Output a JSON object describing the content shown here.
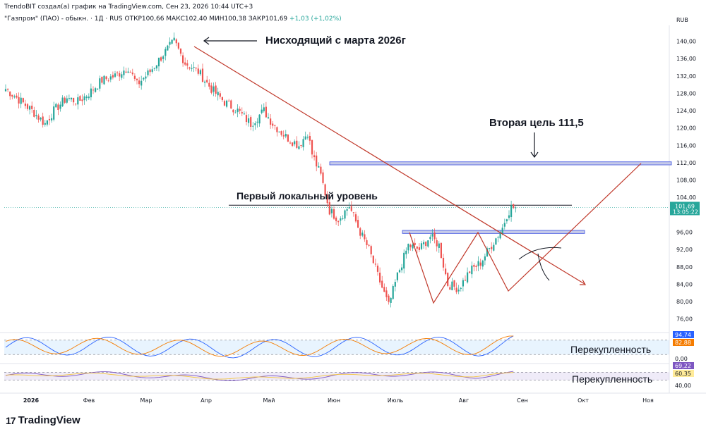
{
  "header": {
    "line1": "TrendoBIT создал(а) график на TradingView.com, Сен 23, 2026 10:44 UTC+3",
    "symbol": "\"Газпром\" (ПАО) - обыкн. · 1Д · RUS",
    "ohlc_open": "ОТКР100,66",
    "ohlc_high": "МАКС102,40",
    "ohlc_low": "МИН100,38",
    "ohlc_close": "ЗАКР101,69",
    "ohlc_change": "+1,03 (+1,02%)",
    "currency": "RUB"
  },
  "footer": {
    "brand": "TradingView",
    "brand_mark": "17"
  },
  "chart_data": {
    "type": "candlestick",
    "annotations": {
      "downtrend": "Нисходящий с марта 2026г",
      "target2": "Вторая цель 111,5",
      "level1": "Первый локальный уровень",
      "overbought1": "Перекупленность",
      "overbought2": "Перекупленность"
    },
    "price_axis": {
      "ticks": [
        140,
        136,
        132,
        128,
        124,
        120,
        116,
        112,
        108,
        104,
        96,
        92,
        88,
        84,
        80,
        76
      ],
      "tick_labels": [
        "140,00",
        "136,00",
        "132,00",
        "128,00",
        "124,00",
        "120,00",
        "116,00",
        "112,00",
        "108,00",
        "104,00",
        "96,00",
        "92,00",
        "88,00",
        "84,00",
        "80,00",
        "76,00"
      ],
      "range": [
        74,
        143
      ],
      "last_price": 101.69,
      "last_price_label": "101,69",
      "countdown": "13:05:22"
    },
    "time_axis": [
      "2026",
      "Фев",
      "Мар",
      "Апр",
      "Май",
      "Июн",
      "Июль",
      "Авг",
      "Сен",
      "Окт",
      "Ноя"
    ],
    "close_path": [
      [
        0,
        129
      ],
      [
        5,
        127
      ],
      [
        12,
        124
      ],
      [
        18,
        121
      ],
      [
        22,
        124
      ],
      [
        28,
        127
      ],
      [
        33,
        126
      ],
      [
        38,
        128
      ],
      [
        44,
        131
      ],
      [
        50,
        132
      ],
      [
        56,
        134
      ],
      [
        60,
        130
      ],
      [
        66,
        133
      ],
      [
        72,
        137
      ],
      [
        77,
        140
      ],
      [
        82,
        135
      ],
      [
        88,
        133
      ],
      [
        94,
        129
      ],
      [
        100,
        126
      ],
      [
        106,
        124
      ],
      [
        112,
        121
      ],
      [
        118,
        124
      ],
      [
        122,
        121
      ],
      [
        128,
        118
      ],
      [
        134,
        116
      ],
      [
        138,
        119
      ],
      [
        140,
        114
      ],
      [
        144,
        109
      ],
      [
        148,
        101
      ],
      [
        152,
        99
      ],
      [
        157,
        102
      ],
      [
        162,
        96
      ],
      [
        166,
        92
      ],
      [
        170,
        86
      ],
      [
        175,
        79
      ],
      [
        179,
        86
      ],
      [
        184,
        93
      ],
      [
        189,
        92
      ],
      [
        194,
        95
      ],
      [
        198,
        93
      ],
      [
        202,
        84
      ],
      [
        207,
        83
      ],
      [
        212,
        87
      ],
      [
        217,
        89
      ],
      [
        222,
        93
      ],
      [
        227,
        97
      ],
      [
        229,
        100
      ],
      [
        231,
        101.69
      ]
    ],
    "levels": {
      "first_local": 102.2,
      "target_zone": [
        111.5,
        112.2
      ],
      "support_zone": [
        95.7,
        96.4
      ]
    },
    "oscillator1": {
      "value_labels": [
        "94,74",
        "82,88"
      ],
      "value_label_colors": [
        "#2962ff",
        "#f57c00"
      ],
      "axis_label": "0,00",
      "bands": [
        80,
        20
      ]
    },
    "oscillator2": {
      "value_labels": [
        "69,22",
        "60,35"
      ],
      "value_label_colors": [
        "#7e57c2",
        "#ffeb99"
      ],
      "axis_label": "40,00",
      "bands": [
        70,
        30
      ]
    },
    "colors": {
      "up": "#26a69a",
      "down": "#ef5350",
      "trendline": "#c0392b",
      "zone_fill": "#c5cae9",
      "zone_stroke": "#3d50e0",
      "label_bg": "#26a69a"
    }
  }
}
